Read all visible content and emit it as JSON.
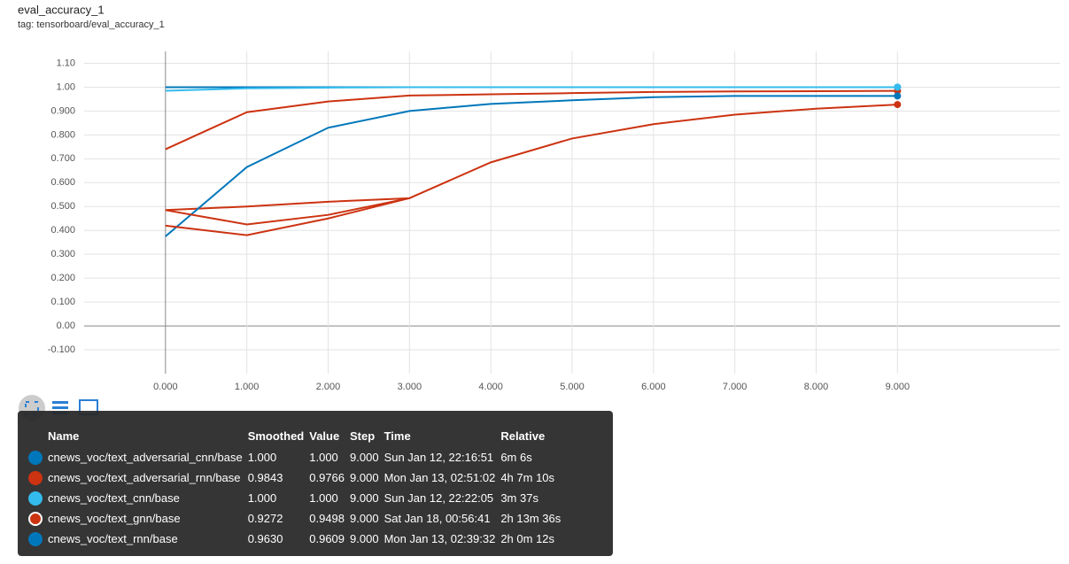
{
  "chart_data": {
    "type": "line",
    "title": "eval_accuracy_1",
    "subtitle": "tag: tensorboard/eval_accuracy_1",
    "x": [
      0,
      1,
      2,
      3,
      4,
      5,
      6,
      7,
      8,
      9
    ],
    "series": [
      {
        "name": "cnews_voc/text_adversarial_cnn/base",
        "color": "#0077bb",
        "values": [
          1.0,
          1.0,
          1.0,
          1.0,
          1.0,
          1.0,
          1.0,
          1.0,
          1.0,
          1.0
        ]
      },
      {
        "name": "cnews_voc/text_adversarial_rnn/base",
        "color": "#cc3311",
        "values": [
          0.74,
          0.895,
          0.94,
          0.965,
          0.97,
          0.975,
          0.98,
          0.982,
          0.983,
          0.9843
        ]
      },
      {
        "name": "cnews_voc/text_cnn/base",
        "color": "#33bbee",
        "values": [
          0.985,
          0.995,
          0.998,
          1.0,
          1.0,
          1.0,
          1.0,
          1.0,
          1.0,
          1.0
        ]
      },
      {
        "name": "cnews_voc/text_gnn/base",
        "color": "#cc3311",
        "values": [
          0.485,
          0.5,
          0.52,
          0.535,
          0.685,
          0.785,
          0.845,
          0.885,
          0.91,
          0.9272
        ]
      },
      {
        "name": "cnews_voc/text_rnn/base",
        "color": "#0077bb",
        "values": [
          0.375,
          0.665,
          0.83,
          0.9,
          0.93,
          0.945,
          0.958,
          0.963,
          0.963,
          0.963
        ]
      },
      {
        "color": "#cc3311",
        "values": [
          0.42,
          0.38,
          0.45,
          0.535,
          null,
          null,
          null,
          null,
          null,
          null
        ]
      },
      {
        "color": "#cc3311",
        "values": [
          0.485,
          0.425,
          0.465,
          0.535,
          null,
          null,
          null,
          null,
          null,
          null
        ]
      }
    ],
    "xlim": [
      -1,
      11
    ],
    "ylim": [
      -0.2,
      1.15
    ],
    "xticks": [
      {
        "value": 0,
        "label": "0.000"
      },
      {
        "value": 1,
        "label": "1.000"
      },
      {
        "value": 2,
        "label": "2.000"
      },
      {
        "value": 3,
        "label": "3.000"
      },
      {
        "value": 4,
        "label": "4.000"
      },
      {
        "value": 5,
        "label": "5.000"
      },
      {
        "value": 6,
        "label": "6.000"
      },
      {
        "value": 7,
        "label": "7.000"
      },
      {
        "value": 8,
        "label": "8.000"
      },
      {
        "value": 9,
        "label": "9.000"
      }
    ],
    "yticks": [
      {
        "value": 1.1,
        "label": "1.10"
      },
      {
        "value": 1.0,
        "label": "1.00"
      },
      {
        "value": 0.9,
        "label": "0.900"
      },
      {
        "value": 0.8,
        "label": "0.800"
      },
      {
        "value": 0.7,
        "label": "0.700"
      },
      {
        "value": 0.6,
        "label": "0.600"
      },
      {
        "value": 0.5,
        "label": "0.500"
      },
      {
        "value": 0.4,
        "label": "0.400"
      },
      {
        "value": 0.3,
        "label": "0.300"
      },
      {
        "value": 0.2,
        "label": "0.200"
      },
      {
        "value": 0.1,
        "label": "0.100"
      },
      {
        "value": 0,
        "label": "0.00"
      },
      {
        "value": -0.1,
        "label": "-0.100"
      }
    ],
    "grid": true
  },
  "tooltip": {
    "columns": [
      "Name",
      "Smoothed",
      "Value",
      "Step",
      "Time",
      "Relative"
    ],
    "rows": [
      [
        "cnews_voc/text_adversarial_cnn/base",
        "1.000",
        "1.000",
        "9.000",
        "Sun Jan 12, 22:16:51",
        "6m 6s"
      ],
      [
        "cnews_voc/text_adversarial_rnn/base",
        "0.9843",
        "0.9766",
        "9.000",
        "Mon Jan 13, 02:51:02",
        "4h 7m 10s"
      ],
      [
        "cnews_voc/text_cnn/base",
        "1.000",
        "1.000",
        "9.000",
        "Sun Jan 12, 22:22:05",
        "3m 37s"
      ],
      [
        "cnews_voc/text_gnn/base",
        "0.9272",
        "0.9498",
        "9.000",
        "Sat Jan 18, 00:56:41",
        "2h 13m 36s"
      ],
      [
        "cnews_voc/text_rnn/base",
        "0.9630",
        "0.9609",
        "9.000",
        "Mon Jan 13, 02:39:32",
        "2h 0m 12s"
      ]
    ]
  }
}
